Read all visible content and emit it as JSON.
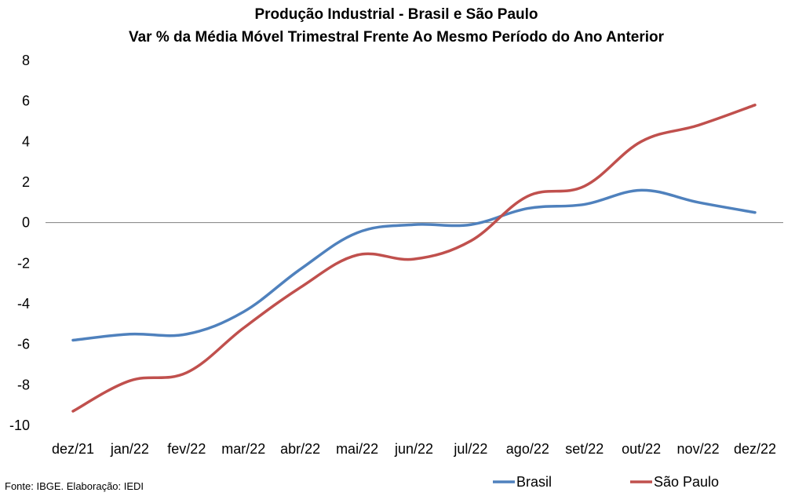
{
  "chart_data": {
    "type": "line",
    "title": "Produção Industrial - Brasil e São Paulo",
    "subtitle": "Var % da Média Móvel Trimestral Frente Ao Mesmo Período do Ano Anterior",
    "categories": [
      "dez/21",
      "jan/22",
      "fev/22",
      "mar/22",
      "abr/22",
      "mai/22",
      "jun/22",
      "jul/22",
      "ago/22",
      "set/22",
      "out/22",
      "nov/22",
      "dez/22"
    ],
    "series": [
      {
        "name": "Brasil",
        "color": "#4f81bd",
        "values": [
          -5.8,
          -5.5,
          -5.5,
          -4.4,
          -2.3,
          -0.5,
          -0.1,
          -0.1,
          0.7,
          0.9,
          1.6,
          1.0,
          0.5
        ]
      },
      {
        "name": "São Paulo",
        "color": "#c0504d",
        "values": [
          -9.3,
          -7.8,
          -7.4,
          -5.2,
          -3.2,
          -1.6,
          -1.8,
          -0.9,
          1.3,
          1.8,
          4.0,
          4.8,
          5.8
        ]
      }
    ],
    "yticks": [
      8,
      6,
      4,
      2,
      0,
      -2,
      -4,
      -6,
      -8,
      -10
    ],
    "ylim": [
      -10,
      8
    ],
    "grid": false,
    "legend": "bottom-right"
  },
  "source": "Fonte: IBGE. Elaboração: IEDI"
}
